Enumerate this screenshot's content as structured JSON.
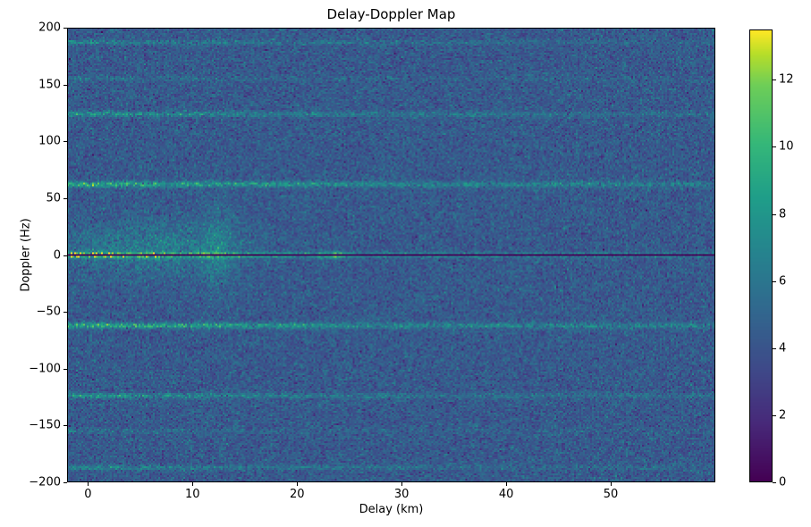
{
  "chart_data": {
    "type": "heatmap",
    "title": "Delay-Doppler Map",
    "xlabel": "Delay (km)",
    "ylabel": "Doppler (Hz)",
    "xlim": [
      -2,
      60
    ],
    "ylim": [
      -200,
      200
    ],
    "colormap": "viridis",
    "vmin": 0,
    "vmax": 13.5,
    "x_ticks": [
      {
        "value": 0,
        "label": "0"
      },
      {
        "value": 10,
        "label": "10"
      },
      {
        "value": 20,
        "label": "20"
      },
      {
        "value": 30,
        "label": "30"
      },
      {
        "value": 40,
        "label": "40"
      },
      {
        "value": 50,
        "label": "50"
      }
    ],
    "y_ticks": [
      {
        "value": 200,
        "label": "200"
      },
      {
        "value": 150,
        "label": "150"
      },
      {
        "value": 100,
        "label": "100"
      },
      {
        "value": 50,
        "label": "50"
      },
      {
        "value": 0,
        "label": "0"
      },
      {
        "value": -50,
        "label": "−50"
      },
      {
        "value": -100,
        "label": "−100"
      },
      {
        "value": -150,
        "label": "−150"
      },
      {
        "value": -200,
        "label": "−200"
      }
    ],
    "colorbar_ticks": [
      {
        "value": 0,
        "label": "0"
      },
      {
        "value": 2,
        "label": "2"
      },
      {
        "value": 4,
        "label": "4"
      },
      {
        "value": 6,
        "label": "6"
      },
      {
        "value": 8,
        "label": "8"
      },
      {
        "value": 10,
        "label": "10"
      },
      {
        "value": 12,
        "label": "12"
      }
    ],
    "noise": {
      "mean": 4.3,
      "std": 0.9
    },
    "zero_doppler_dark_line": {
      "doppler_hz": 0,
      "value": 0,
      "half_width_hz": 0.8
    },
    "stripes": [
      {
        "doppler_hz": 0,
        "amp": 8.5,
        "sigma_hz": 1.6,
        "decay_km": 16,
        "floor": 0.28
      },
      {
        "doppler_hz": 62,
        "amp": 4.8,
        "sigma_hz": 1.8,
        "decay_km": 30,
        "floor": 0.3
      },
      {
        "doppler_hz": -62,
        "amp": 4.8,
        "sigma_hz": 1.8,
        "decay_km": 30,
        "floor": 0.3
      },
      {
        "doppler_hz": 124,
        "amp": 3.4,
        "sigma_hz": 1.6,
        "decay_km": 26,
        "floor": 0.22
      },
      {
        "doppler_hz": -124,
        "amp": 3.4,
        "sigma_hz": 1.6,
        "decay_km": 26,
        "floor": 0.22
      },
      {
        "doppler_hz": 155,
        "amp": 1.2,
        "sigma_hz": 1.5,
        "decay_km": 24,
        "floor": 0.18
      },
      {
        "doppler_hz": -155,
        "amp": 1.2,
        "sigma_hz": 1.5,
        "decay_km": 24,
        "floor": 0.18
      },
      {
        "doppler_hz": 187,
        "amp": 2.4,
        "sigma_hz": 1.5,
        "decay_km": 26,
        "floor": 0.2
      },
      {
        "doppler_hz": -187,
        "amp": 2.4,
        "sigma_hz": 1.5,
        "decay_km": 26,
        "floor": 0.2
      }
    ],
    "blobs": [
      {
        "delay_km": 6,
        "doppler_hz": 6,
        "sigma_delay_km": 6,
        "sigma_doppler_hz": 16,
        "amp": 2.2
      },
      {
        "delay_km": 12.4,
        "doppler_hz": 5,
        "sigma_delay_km": 1.0,
        "sigma_doppler_hz": 28,
        "amp": 1.8
      },
      {
        "delay_km": 23.5,
        "doppler_hz": 0,
        "sigma_delay_km": 0.8,
        "sigma_doppler_hz": 2.5,
        "amp": 3.5
      }
    ]
  }
}
